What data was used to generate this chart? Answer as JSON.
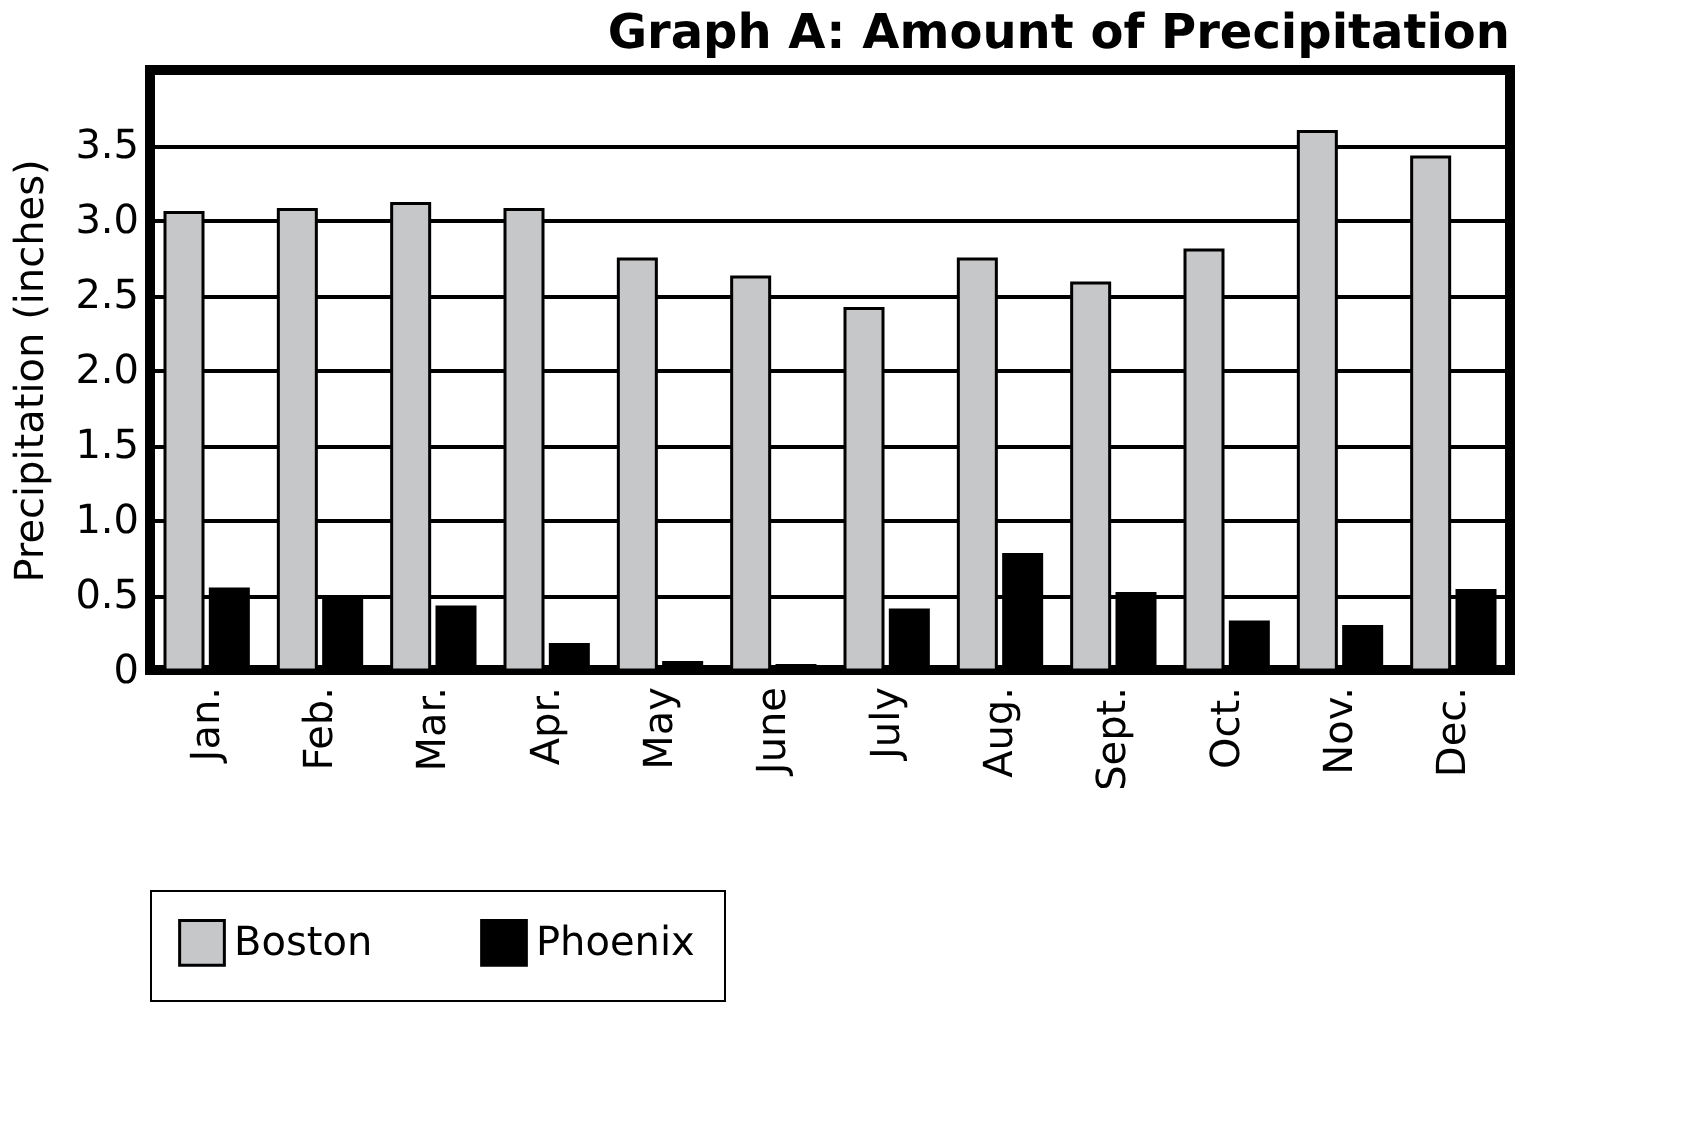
{
  "chart_data": {
    "type": "bar",
    "title": "Graph A: Amount of Precipitation",
    "ylabel": "Precipitation (inches)",
    "categories": [
      "Jan.",
      "Feb.",
      "Mar.",
      "Apr.",
      "May",
      "June",
      "July",
      "Aug.",
      "Sept.",
      "Oct.",
      "Nov.",
      "Dec."
    ],
    "series": [
      {
        "name": "Boston",
        "color": "#c6c7c9",
        "values": [
          3.05,
          3.07,
          3.11,
          3.07,
          2.74,
          2.62,
          2.41,
          2.74,
          2.58,
          2.8,
          3.59,
          3.42
        ]
      },
      {
        "name": "Phoenix",
        "color": "#000000",
        "values": [
          0.54,
          0.49,
          0.42,
          0.17,
          0.05,
          0.03,
          0.4,
          0.77,
          0.51,
          0.32,
          0.29,
          0.53
        ]
      }
    ],
    "ylim": [
      0,
      4
    ],
    "yticks": [
      0,
      {
        "value": 0.5,
        "label": "0.5"
      },
      {
        "value": 1,
        "label": "1.0"
      },
      {
        "value": 1.5,
        "label": "1.5"
      },
      {
        "value": 2,
        "label": "2.0"
      },
      {
        "value": 2.5,
        "label": "2.5"
      },
      {
        "value": 3,
        "label": "3.0"
      },
      {
        "value": 3.5,
        "label": "3.5"
      }
    ],
    "grid": "y",
    "legend": "bottom"
  }
}
